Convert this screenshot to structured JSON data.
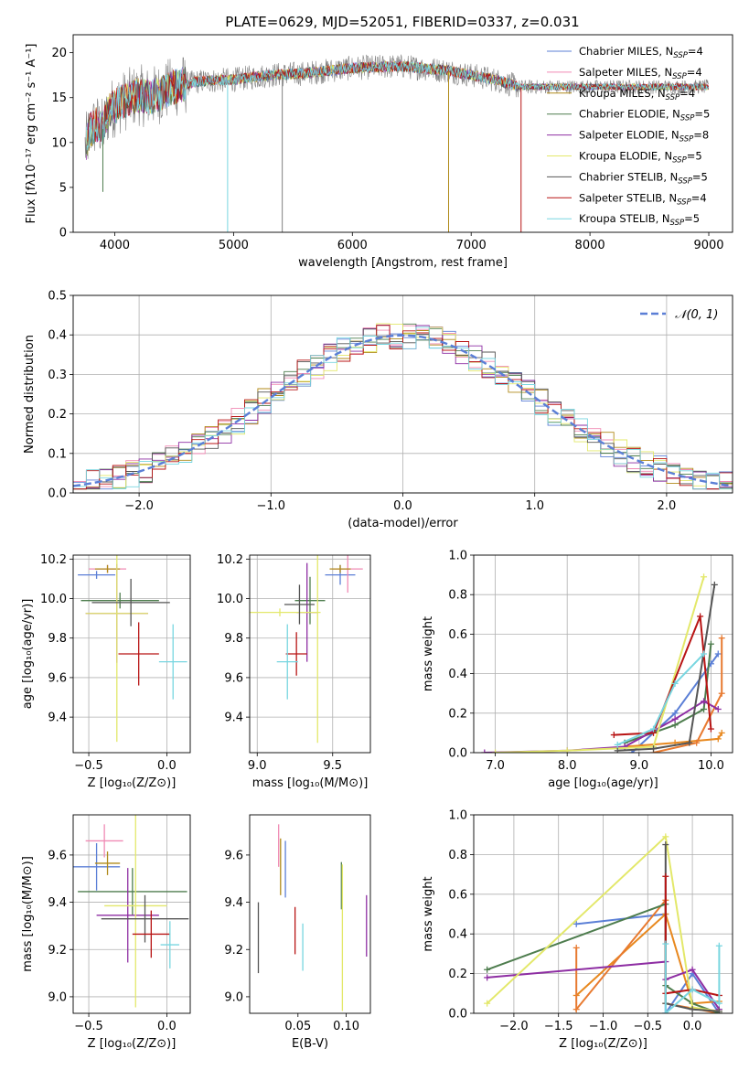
{
  "figure": {
    "title": "PLATE=0629, MJD=52051, FIBERID=0337, z=0.031"
  },
  "colors": {
    "models": [
      "#5b7fd6",
      "#f08ab4",
      "#b08a1a",
      "#4e7d4e",
      "#8e2ea3",
      "#e3e86a",
      "#555555",
      "#b81414",
      "#78d6e0"
    ],
    "wl_models": [
      "#5b7fd6",
      "#e8881e",
      "#e87a30",
      "#4e7d4e",
      "#8e2ea3",
      "#e3e86a",
      "#555555",
      "#b81414",
      "#78d6e0",
      "#f08ab4"
    ],
    "data": "#808080"
  },
  "chart_data": [
    {
      "id": "spectrum",
      "type": "line",
      "title": "PLATE=0629, MJD=52051, FIBERID=0337, z=0.031",
      "xlabel": "wavelength [Angstrom, rest frame]",
      "ylabel_tex": "Flux [fλ10⁻¹⁷ erg cm⁻² s⁻¹ A⁻¹]",
      "xlim": [
        3650,
        9200
      ],
      "ylim": [
        0,
        22
      ],
      "xticks": [
        4000,
        5000,
        6000,
        7000,
        8000,
        9000
      ],
      "yticks": [
        0,
        5,
        10,
        15,
        20
      ],
      "continuum": {
        "x": [
          3750,
          3800,
          3850,
          3900,
          3950,
          4000,
          4100,
          4200,
          4300,
          4500,
          4700,
          5000,
          5300,
          5600,
          6000,
          6400,
          6800,
          7200,
          7400
        ],
        "y": [
          9.5,
          11.5,
          12.0,
          11.5,
          13.5,
          14.0,
          14.8,
          15.3,
          15.0,
          16.2,
          16.8,
          17.0,
          17.5,
          17.7,
          18.3,
          18.5,
          18.0,
          17.0,
          16.2
        ]
      },
      "dips": [
        {
          "x": 3900,
          "y": 4.5
        },
        {
          "x": 4950,
          "y": 0
        },
        {
          "x": 5410,
          "y": 0
        },
        {
          "x": 6810,
          "y": 0
        },
        {
          "x": 7420,
          "y": 0
        }
      ],
      "legend": [
        {
          "label": "Chabrier MILES, N",
          "sub": "SSP",
          "suffix": "=4"
        },
        {
          "label": "Salpeter MILES, N",
          "sub": "SSP",
          "suffix": "=4"
        },
        {
          "label": "Kroupa MILES, N",
          "sub": "SSP",
          "suffix": "=4"
        },
        {
          "label": "Chabrier ELODIE, N",
          "sub": "SSP",
          "suffix": "=5"
        },
        {
          "label": "Salpeter ELODIE, N",
          "sub": "SSP",
          "suffix": "=8"
        },
        {
          "label": "Kroupa ELODIE, N",
          "sub": "SSP",
          "suffix": "=5"
        },
        {
          "label": "Chabrier STELIB, N",
          "sub": "SSP",
          "suffix": "=5"
        },
        {
          "label": "Salpeter STELIB, N",
          "sub": "SSP",
          "suffix": "=4"
        },
        {
          "label": "Kroupa STELIB, N",
          "sub": "SSP",
          "suffix": "=5"
        }
      ]
    },
    {
      "id": "residuals",
      "type": "histogram",
      "xlabel": "(data-model)/error",
      "ylabel": "Normed distribution",
      "xlim": [
        -2.5,
        2.5
      ],
      "ylim": [
        0,
        0.5
      ],
      "xticks": [
        -2,
        -1,
        0,
        1,
        2
      ],
      "yticks": [
        0.0,
        0.1,
        0.2,
        0.3,
        0.4,
        0.5
      ],
      "bin_width": 0.1,
      "legend": "𝒩(0, 1)",
      "gaussian": {
        "mu": 0,
        "sigma": 1
      }
    },
    {
      "id": "age_vs_Z",
      "type": "errorbar",
      "xlabel": "Z [log₁₀(Z/Z⊙)]",
      "ylabel": "age  [log₁₀(age/yr)]",
      "xlim": [
        -0.6,
        0.15
      ],
      "ylim": [
        9.22,
        10.22
      ],
      "xticks": [
        -0.5,
        0.0
      ],
      "yticks": [
        9.4,
        9.6,
        9.8,
        10.0,
        10.2
      ],
      "points": [
        {
          "x": -0.45,
          "y": 10.12,
          "xerr": 0.12,
          "yerr": 0.02,
          "c": 0
        },
        {
          "x": -0.38,
          "y": 10.15,
          "xerr": 0.12,
          "yerr": 0.02,
          "c": 1
        },
        {
          "x": -0.38,
          "y": 10.15,
          "xerr": 0.08,
          "yerr": 0.02,
          "c": 2
        },
        {
          "x": -0.3,
          "y": 9.99,
          "xerr": 0.25,
          "yerr": 0.04,
          "c": 3
        },
        {
          "x": -0.32,
          "y": 9.925,
          "xerr": 0.2,
          "yerr": 0.25,
          "c": 4
        },
        {
          "x": -0.32,
          "y": 9.925,
          "xerr": 0.2,
          "yerr": 0.65,
          "c": 5
        },
        {
          "x": -0.23,
          "y": 9.98,
          "xerr": 0.25,
          "yerr": 0.12,
          "c": 6
        },
        {
          "x": -0.18,
          "y": 9.72,
          "xerr": 0.13,
          "yerr": 0.16,
          "c": 7
        },
        {
          "x": 0.04,
          "y": 9.68,
          "xerr": 0.09,
          "yerr": 0.19,
          "c": 8
        }
      ]
    },
    {
      "id": "age_vs_mass",
      "type": "errorbar",
      "xlabel": "mass [log₁₀(M/M⊙)]",
      "ylabel": "",
      "xlim": [
        8.95,
        9.75
      ],
      "ylim": [
        9.22,
        10.22
      ],
      "xticks": [
        9.0,
        9.5
      ],
      "yticks": [
        9.4,
        9.6,
        9.8,
        10.0,
        10.2
      ],
      "points": [
        {
          "x": 9.55,
          "y": 10.12,
          "xerr": 0.1,
          "yerr": 0.05,
          "c": 0
        },
        {
          "x": 9.6,
          "y": 10.15,
          "xerr": 0.1,
          "yerr": 0.12,
          "c": 1
        },
        {
          "x": 9.55,
          "y": 10.15,
          "xerr": 0.07,
          "yerr": 0.02,
          "c": 2
        },
        {
          "x": 9.35,
          "y": 9.99,
          "xerr": 0.1,
          "yerr": 0.12,
          "c": 3
        },
        {
          "x": 9.33,
          "y": 9.93,
          "xerr": 0.07,
          "yerr": 0.25,
          "c": 4
        },
        {
          "x": 9.15,
          "y": 9.93,
          "xerr": 0.27,
          "yerr": 0.02,
          "c": 5
        },
        {
          "x": 9.28,
          "y": 9.97,
          "xerr": 0.1,
          "yerr": 0.1,
          "c": 6
        },
        {
          "x": 9.26,
          "y": 9.72,
          "xerr": 0.07,
          "yerr": 0.11,
          "c": 7
        },
        {
          "x": 9.2,
          "y": 9.68,
          "xerr": 0.07,
          "yerr": 0.19,
          "c": 8
        },
        {
          "x": 9.4,
          "y": 9.82,
          "xerr": 0.0,
          "yerr": 0.55,
          "c": 5
        }
      ]
    },
    {
      "id": "weight_vs_age",
      "type": "line",
      "xlabel": "age  [log₁₀(age/yr)]",
      "ylabel": "mass weight",
      "xlim": [
        6.7,
        10.3
      ],
      "ylim": [
        0,
        1
      ],
      "xticks": [
        7,
        8,
        9,
        10
      ],
      "yticks": [
        0.0,
        0.2,
        0.4,
        0.6,
        0.8,
        1.0
      ],
      "series": [
        {
          "c": 0,
          "x": [
            8.9,
            9.5,
            10.0,
            10.1
          ],
          "y": [
            0.0,
            0.2,
            0.45,
            0.5
          ]
        },
        {
          "c": 1,
          "x": [
            8.8,
            9.5,
            10.1,
            10.15
          ],
          "y": [
            0.03,
            0.05,
            0.07,
            0.1
          ]
        },
        {
          "c": 2,
          "x": [
            9.2,
            9.8,
            10.15,
            10.15
          ],
          "y": [
            0.0,
            0.05,
            0.3,
            0.58
          ]
        },
        {
          "c": 3,
          "x": [
            8.8,
            9.5,
            9.9,
            10.0
          ],
          "y": [
            0.05,
            0.14,
            0.22,
            0.55
          ]
        },
        {
          "c": 4,
          "x": [
            6.85,
            8.0,
            8.8,
            9.5,
            9.9,
            10.1
          ],
          "y": [
            0.0,
            0.01,
            0.03,
            0.17,
            0.26,
            0.22
          ]
        },
        {
          "c": 5,
          "x": [
            7.0,
            8.0,
            9.2,
            9.9
          ],
          "y": [
            0.0,
            0.01,
            0.03,
            0.89
          ]
        },
        {
          "c": 6,
          "x": [
            8.7,
            9.2,
            9.7,
            10.05
          ],
          "y": [
            0.01,
            0.02,
            0.05,
            0.85
          ]
        },
        {
          "c": 7,
          "x": [
            8.65,
            9.2,
            9.85,
            10.0
          ],
          "y": [
            0.09,
            0.1,
            0.69,
            0.12
          ]
        },
        {
          "c": 8,
          "x": [
            8.7,
            9.2,
            9.5,
            9.9
          ],
          "y": [
            0.04,
            0.12,
            0.35,
            0.5
          ]
        }
      ]
    },
    {
      "id": "mass_vs_Z",
      "type": "errorbar",
      "xlabel": "Z [log₁₀(Z/Z⊙)]",
      "ylabel": "mass [log₁₀(M/M⊙)]",
      "xlim": [
        -0.6,
        0.15
      ],
      "ylim": [
        8.93,
        9.77
      ],
      "xticks": [
        -0.5,
        0.0
      ],
      "yticks": [
        9.0,
        9.2,
        9.4,
        9.6
      ],
      "points": [
        {
          "x": -0.45,
          "y": 9.55,
          "xerr": 0.15,
          "yerr": 0.1,
          "c": 0
        },
        {
          "x": -0.4,
          "y": 9.66,
          "xerr": 0.12,
          "yerr": 0.07,
          "c": 1
        },
        {
          "x": -0.38,
          "y": 9.565,
          "xerr": 0.08,
          "yerr": 0.05,
          "c": 2
        },
        {
          "x": -0.22,
          "y": 9.445,
          "xerr": 0.35,
          "yerr": 0.1,
          "c": 3
        },
        {
          "x": -0.25,
          "y": 9.345,
          "xerr": 0.2,
          "yerr": 0.2,
          "c": 4
        },
        {
          "x": -0.2,
          "y": 9.385,
          "xerr": 0.2,
          "yerr": 0.43,
          "c": 5
        },
        {
          "x": -0.14,
          "y": 9.33,
          "xerr": 0.28,
          "yerr": 0.1,
          "c": 6
        },
        {
          "x": -0.1,
          "y": 9.265,
          "xerr": 0.12,
          "yerr": 0.1,
          "c": 7
        },
        {
          "x": 0.02,
          "y": 9.22,
          "xerr": 0.06,
          "yerr": 0.1,
          "c": 8
        }
      ]
    },
    {
      "id": "mass_vs_ebv",
      "type": "errorbar",
      "xlabel": "E(B-V)",
      "ylabel": "",
      "xlim": [
        0.0,
        0.125
      ],
      "ylim": [
        8.93,
        9.77
      ],
      "xticks": [
        0.05,
        0.1
      ],
      "yticks": [
        9.0,
        9.2,
        9.4,
        9.6
      ],
      "points": [
        {
          "x": 0.009,
          "y": 9.25,
          "xerr": 0,
          "yerr": 0.15,
          "c": 6
        },
        {
          "x": 0.03,
          "y": 9.64,
          "xerr": 0,
          "yerr": 0.09,
          "c": 1
        },
        {
          "x": 0.032,
          "y": 9.55,
          "xerr": 0,
          "yerr": 0.12,
          "c": 2
        },
        {
          "x": 0.037,
          "y": 9.54,
          "xerr": 0,
          "yerr": 0.12,
          "c": 0
        },
        {
          "x": 0.047,
          "y": 9.28,
          "xerr": 0,
          "yerr": 0.1,
          "c": 7
        },
        {
          "x": 0.055,
          "y": 9.21,
          "xerr": 0,
          "yerr": 0.1,
          "c": 8
        },
        {
          "x": 0.095,
          "y": 9.47,
          "xerr": 0,
          "yerr": 0.1,
          "c": 3
        },
        {
          "x": 0.096,
          "y": 9.25,
          "xerr": 0,
          "yerr": 0.31,
          "c": 5
        },
        {
          "x": 0.121,
          "y": 9.3,
          "xerr": 0,
          "yerr": 0.13,
          "c": 4
        }
      ]
    },
    {
      "id": "weight_vs_Z",
      "type": "line",
      "xlabel": "Z [log₁₀(Z/Z⊙)]",
      "ylabel": "mass weight",
      "xlim": [
        -2.45,
        0.45
      ],
      "ylim": [
        0,
        1
      ],
      "xticks": [
        -2.0,
        -1.5,
        -1.0,
        -0.5,
        0.0
      ],
      "yticks": [
        0.0,
        0.2,
        0.4,
        0.6,
        0.8,
        1.0
      ],
      "series": [
        {
          "c": 0,
          "x": [
            -1.3,
            -0.3,
            -0.3,
            0.0,
            0.3
          ],
          "y": [
            0.45,
            0.5,
            0.0,
            0.2,
            0.0
          ]
        },
        {
          "c": 1,
          "x": [
            -1.3,
            -0.3,
            0.0,
            0.3
          ],
          "y": [
            0.09,
            0.5,
            0.05,
            0.06
          ]
        },
        {
          "c": 2,
          "x": [
            -1.3,
            -1.3,
            -0.3,
            -0.3,
            0.3
          ],
          "y": [
            0.33,
            0.02,
            0.57,
            0.05,
            0.0
          ]
        },
        {
          "c": 3,
          "x": [
            -2.3,
            -0.3,
            -0.3,
            0.0,
            0.3
          ],
          "y": [
            0.22,
            0.55,
            0.14,
            0.05,
            0.0
          ]
        },
        {
          "c": 4,
          "x": [
            -2.3,
            -0.3,
            -0.3,
            0.0,
            0.3
          ],
          "y": [
            0.18,
            0.26,
            0.17,
            0.22,
            0.02
          ]
        },
        {
          "c": 5,
          "x": [
            -2.3,
            -0.3,
            0.0,
            0.3
          ],
          "y": [
            0.05,
            0.89,
            0.03,
            0.01
          ]
        },
        {
          "c": 6,
          "x": [
            -0.3,
            -0.3,
            0.0,
            0.3
          ],
          "y": [
            0.85,
            0.05,
            0.02,
            0.01
          ]
        },
        {
          "c": 7,
          "x": [
            -0.3,
            -0.3,
            0.0,
            0.3
          ],
          "y": [
            0.69,
            0.1,
            0.12,
            0.09
          ]
        },
        {
          "c": 8,
          "x": [
            -0.3,
            -0.3,
            0.0,
            0.3,
            0.3
          ],
          "y": [
            0.35,
            0.0,
            0.12,
            0.05,
            0.34
          ]
        }
      ]
    }
  ]
}
